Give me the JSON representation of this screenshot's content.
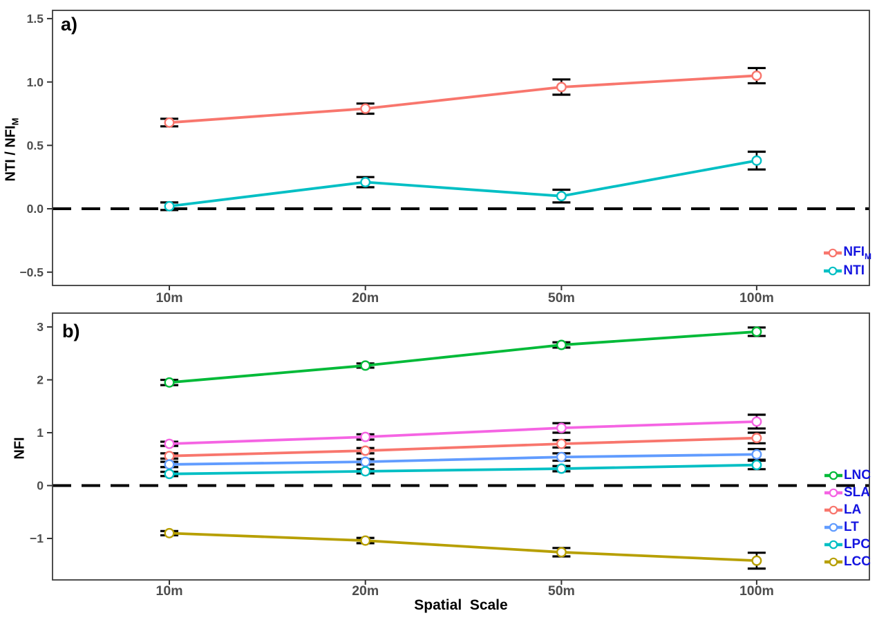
{
  "xlabel": "Spatial  Scale",
  "colors": {
    "legend_text": "#1414e0",
    "tick_label": "#4d4d4d",
    "axis_title": "#000000",
    "panel_border": "#3a3a3a",
    "zero_line": "#000000",
    "errorbar": "#000000",
    "background": "#ffffff"
  },
  "chart_data": [
    {
      "type": "line",
      "panel_label": "a)",
      "ylabel": {
        "label": "NTI / NFI",
        "sub": "M"
      },
      "categories": [
        "10m",
        "20m",
        "50m",
        "100m"
      ],
      "ylim": [
        -0.605,
        1.565
      ],
      "yticks": [
        {
          "v": 1.5,
          "t": "1.5"
        },
        {
          "v": 1.0,
          "t": "1.0"
        },
        {
          "v": 0.5,
          "t": "0.5"
        },
        {
          "v": 0.0,
          "t": "0.0"
        },
        {
          "v": -0.5,
          "t": "−0.5"
        }
      ],
      "zero_dashed_line": true,
      "grid": false,
      "legend_position": "inside-right",
      "series": [
        {
          "name": {
            "label": "NFI",
            "sub": "M"
          },
          "color": "#F8766D",
          "values": [
            0.68,
            0.79,
            0.96,
            1.05
          ],
          "se": [
            0.03,
            0.04,
            0.06,
            0.06
          ]
        },
        {
          "name": {
            "label": "NTI",
            "sub": ""
          },
          "color": "#00BFC4",
          "values": [
            0.02,
            0.21,
            0.1,
            0.38
          ],
          "se": [
            0.03,
            0.04,
            0.05,
            0.07
          ]
        }
      ]
    },
    {
      "type": "line",
      "panel_label": "b)",
      "ylabel": {
        "label": "NFI",
        "sub": ""
      },
      "categories": [
        "10m",
        "20m",
        "50m",
        "100m"
      ],
      "ylim": [
        -1.784,
        3.262
      ],
      "yticks": [
        {
          "v": 3,
          "t": "3"
        },
        {
          "v": 2,
          "t": "2"
        },
        {
          "v": 1,
          "t": "1"
        },
        {
          "v": 0,
          "t": "0"
        },
        {
          "v": -1,
          "t": "−1"
        }
      ],
      "zero_dashed_line": true,
      "grid": false,
      "legend_position": "inside-right",
      "series": [
        {
          "name": {
            "label": "LNC",
            "sub": ""
          },
          "color": "#00BA38",
          "values": [
            1.95,
            2.27,
            2.66,
            2.91
          ],
          "se": [
            0.05,
            0.04,
            0.05,
            0.08
          ]
        },
        {
          "name": {
            "label": "SLA",
            "sub": ""
          },
          "color": "#F564E3",
          "values": [
            0.79,
            0.92,
            1.09,
            1.21
          ],
          "se": [
            0.04,
            0.05,
            0.09,
            0.13
          ]
        },
        {
          "name": {
            "label": "LA",
            "sub": ""
          },
          "color": "#F8766D",
          "values": [
            0.56,
            0.66,
            0.79,
            0.9
          ],
          "se": [
            0.05,
            0.05,
            0.07,
            0.1
          ]
        },
        {
          "name": {
            "label": "LT",
            "sub": ""
          },
          "color": "#619CFF",
          "values": [
            0.4,
            0.45,
            0.54,
            0.59
          ],
          "se": [
            0.05,
            0.05,
            0.07,
            0.1
          ]
        },
        {
          "name": {
            "label": "LPC",
            "sub": ""
          },
          "color": "#00BFC4",
          "values": [
            0.22,
            0.27,
            0.32,
            0.39
          ],
          "se": [
            0.04,
            0.04,
            0.05,
            0.08
          ]
        },
        {
          "name": {
            "label": "LCC",
            "sub": ""
          },
          "color": "#B79F00",
          "values": [
            -0.9,
            -1.04,
            -1.26,
            -1.42
          ],
          "se": [
            0.04,
            0.05,
            0.08,
            0.15
          ]
        }
      ]
    }
  ]
}
